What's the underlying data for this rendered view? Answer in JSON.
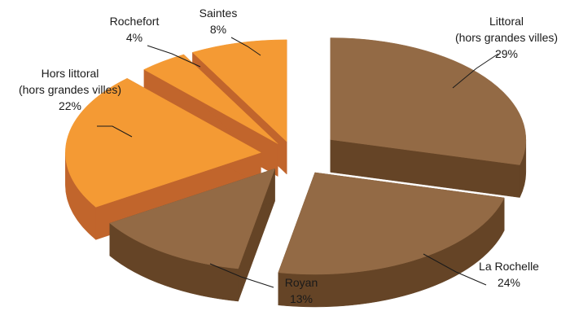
{
  "chart_data": {
    "type": "pie",
    "title": "",
    "style": "3d-exploded",
    "colors": {
      "brown_top": "#936a45",
      "brown_side": "#654426",
      "orange_top": "#f49a34",
      "orange_side": "#c1652c"
    },
    "slices": [
      {
        "name": "Littoral (hors grandes villes)",
        "label_lines": [
          "Littoral",
          "(hors grandes villes)"
        ],
        "percent_label": "29%",
        "value": 29,
        "color_group": "brown"
      },
      {
        "name": "La Rochelle",
        "label_lines": [
          "La Rochelle"
        ],
        "percent_label": "24%",
        "value": 24,
        "color_group": "brown"
      },
      {
        "name": "Royan",
        "label_lines": [
          "Royan"
        ],
        "percent_label": "13%",
        "value": 13,
        "color_group": "brown"
      },
      {
        "name": "Hors littoral (hors grandes villes)",
        "label_lines": [
          "Hors littoral",
          "(hors grandes villes)"
        ],
        "percent_label": "22%",
        "value": 22,
        "color_group": "orange"
      },
      {
        "name": "Rochefort",
        "label_lines": [
          "Rochefort"
        ],
        "percent_label": "4%",
        "value": 4,
        "color_group": "orange"
      },
      {
        "name": "Saintes",
        "label_lines": [
          "Saintes"
        ],
        "percent_label": "8%",
        "value": 8,
        "color_group": "orange"
      }
    ]
  }
}
